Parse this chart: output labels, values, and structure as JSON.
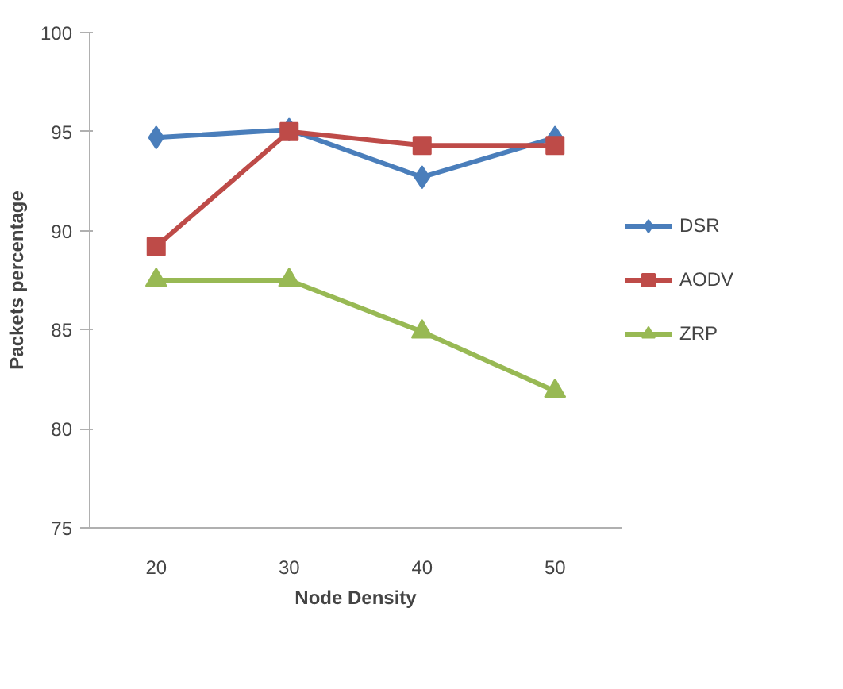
{
  "chart_data": {
    "type": "line",
    "xlabel": "Node Density",
    "ylabel": "Packets percentage",
    "categories": [
      "20",
      "30",
      "40",
      "50"
    ],
    "ylim": [
      75,
      100
    ],
    "yticks": [
      75,
      80,
      85,
      90,
      95,
      100
    ],
    "legend": "right",
    "line_style": "solid",
    "series": [
      {
        "name": "DSR",
        "color": "#4a7ebb",
        "marker": "diamond",
        "values": [
          94.7,
          95.1,
          92.7,
          94.7
        ]
      },
      {
        "name": "AODV",
        "color": "#be4b48",
        "marker": "square",
        "values": [
          89.2,
          95.0,
          94.3,
          94.3
        ]
      },
      {
        "name": "ZRP",
        "color": "#98b954",
        "marker": "triangle",
        "values": [
          87.5,
          87.5,
          84.9,
          81.9
        ]
      }
    ]
  }
}
